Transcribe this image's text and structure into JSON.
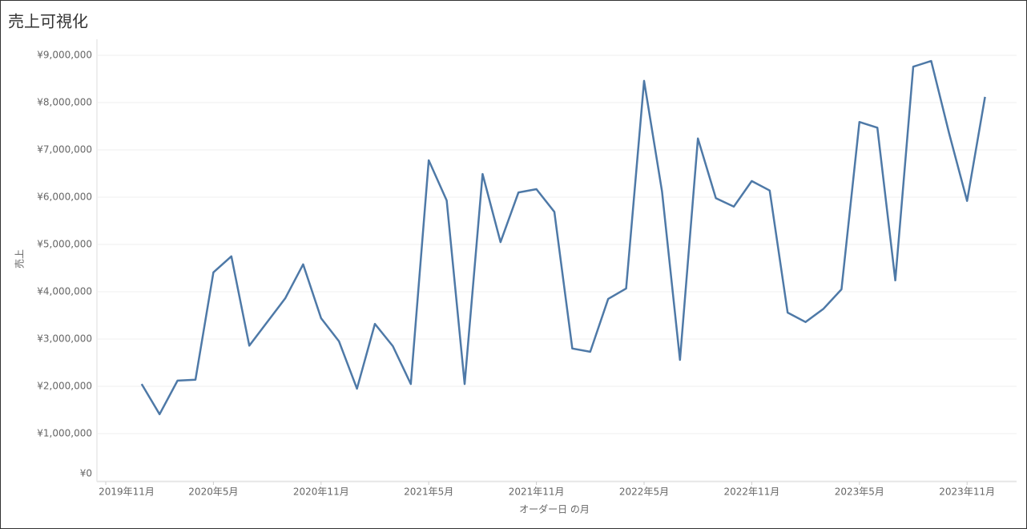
{
  "chart_data": {
    "type": "line",
    "title": "売上可視化",
    "x_label": "オーダー日 の月",
    "y_label": "売上",
    "x": [
      "2020-01",
      "2020-02",
      "2020-03",
      "2020-04",
      "2020-05",
      "2020-06",
      "2020-07",
      "2020-08",
      "2020-09",
      "2020-10",
      "2020-11",
      "2020-12",
      "2021-01",
      "2021-02",
      "2021-03",
      "2021-04",
      "2021-05",
      "2021-06",
      "2021-07",
      "2021-08",
      "2021-09",
      "2021-10",
      "2021-11",
      "2021-12",
      "2022-01",
      "2022-02",
      "2022-03",
      "2022-04",
      "2022-05",
      "2022-06",
      "2022-07",
      "2022-08",
      "2022-09",
      "2022-10",
      "2022-11",
      "2022-12",
      "2023-01",
      "2023-02",
      "2023-03",
      "2023-04",
      "2023-05",
      "2023-06",
      "2023-07",
      "2023-08",
      "2023-09",
      "2023-10",
      "2023-11",
      "2023-12"
    ],
    "series": [
      {
        "name": "売上",
        "color": "#4e79a7",
        "values": [
          2050000,
          1410000,
          2120000,
          2140000,
          4410000,
          4750000,
          2860000,
          3360000,
          3860000,
          4580000,
          3440000,
          2950000,
          1950000,
          3320000,
          2850000,
          2050000,
          6780000,
          5930000,
          2050000,
          6490000,
          5050000,
          6100000,
          6170000,
          5690000,
          2800000,
          2730000,
          3850000,
          4070000,
          8460000,
          6120000,
          2560000,
          7240000,
          5980000,
          5800000,
          6340000,
          6140000,
          3560000,
          3360000,
          3640000,
          4050000,
          7590000,
          7470000,
          4240000,
          8760000,
          8880000,
          7350000,
          5920000,
          8120000
        ]
      }
    ],
    "xlim": [
      "2019-11",
      "2024-01"
    ],
    "xticks": [
      {
        "value": "2019-11",
        "label": "2019年11月"
      },
      {
        "value": "2020-05",
        "label": "2020年5月"
      },
      {
        "value": "2020-11",
        "label": "2020年11月"
      },
      {
        "value": "2021-05",
        "label": "2021年5月"
      },
      {
        "value": "2021-11",
        "label": "2021年11月"
      },
      {
        "value": "2022-05",
        "label": "2022年5月"
      },
      {
        "value": "2022-11",
        "label": "2022年11月"
      },
      {
        "value": "2023-05",
        "label": "2023年5月"
      },
      {
        "value": "2023-11",
        "label": "2023年11月"
      }
    ],
    "ylim": [
      0,
      9000000
    ],
    "yticks": [
      {
        "value": 0,
        "label": "¥0"
      },
      {
        "value": 1000000,
        "label": "¥1,000,000"
      },
      {
        "value": 2000000,
        "label": "¥2,000,000"
      },
      {
        "value": 3000000,
        "label": "¥3,000,000"
      },
      {
        "value": 4000000,
        "label": "¥4,000,000"
      },
      {
        "value": 5000000,
        "label": "¥5,000,000"
      },
      {
        "value": 6000000,
        "label": "¥6,000,000"
      },
      {
        "value": 7000000,
        "label": "¥7,000,000"
      },
      {
        "value": 8000000,
        "label": "¥8,000,000"
      },
      {
        "value": 9000000,
        "label": "¥9,000,000"
      }
    ],
    "grid": true
  }
}
